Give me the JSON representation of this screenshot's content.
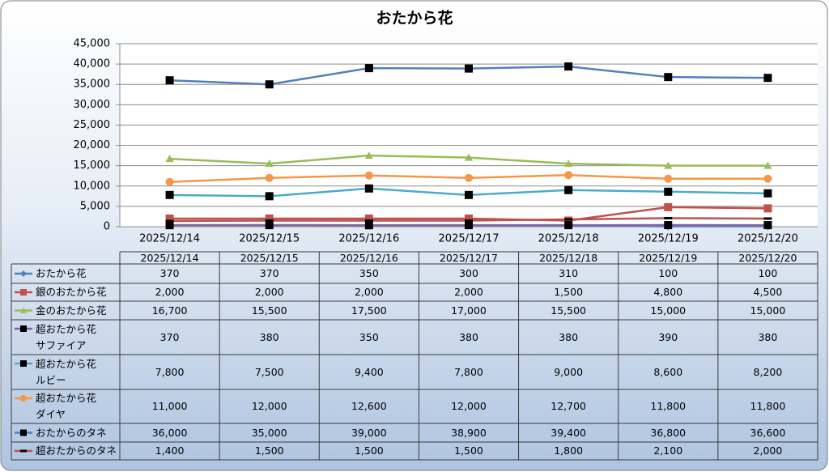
{
  "chart_data": {
    "type": "line",
    "title": "おたから花",
    "categories": [
      "2025/12/14",
      "2025/12/15",
      "2025/12/16",
      "2025/12/17",
      "2025/12/18",
      "2025/12/19",
      "2025/12/20"
    ],
    "ylim": [
      0,
      45000
    ],
    "yticks": [
      0,
      {
        "value": 5000,
        "label": "5,000"
      },
      {
        "value": 10000,
        "label": "10,000"
      },
      {
        "value": 15000,
        "label": "15,000"
      },
      {
        "value": 20000,
        "label": "20,000"
      },
      {
        "value": 25000,
        "label": "25,000"
      },
      {
        "value": 30000,
        "label": "30,000"
      },
      {
        "value": 35000,
        "label": "35,000"
      },
      {
        "value": 40000,
        "label": "40,000"
      },
      {
        "value": 45000,
        "label": "45,000"
      }
    ],
    "grid": true,
    "legend": "table",
    "series": [
      {
        "name": "おたから花",
        "color": "#4f81bd",
        "marker": "diamond",
        "marker_color": "#4f81bd",
        "values": [
          370,
          370,
          350,
          300,
          310,
          100,
          100
        ],
        "value_labels": [
          "370",
          "370",
          "350",
          "300",
          "310",
          "100",
          "100"
        ]
      },
      {
        "name": "銀のおたから花",
        "color": "#c0504d",
        "marker": "square",
        "marker_color": "#c0504d",
        "values": [
          2000,
          2000,
          2000,
          2000,
          1500,
          4800,
          4500
        ],
        "value_labels": [
          "2,000",
          "2,000",
          "2,000",
          "2,000",
          "1,500",
          "4,800",
          "4,500"
        ]
      },
      {
        "name": "金のおたから花",
        "color": "#9bbb59",
        "marker": "triangle",
        "marker_color": "#9bbb59",
        "values": [
          16700,
          15500,
          17500,
          17000,
          15500,
          15000,
          15000
        ],
        "value_labels": [
          "16,700",
          "15,500",
          "17,500",
          "17,000",
          "15,500",
          "15,000",
          "15,000"
        ]
      },
      {
        "name": "超おたから花\nサファイア",
        "color": "#8064a2",
        "marker": "square",
        "marker_color": "#000000",
        "values": [
          370,
          380,
          350,
          380,
          380,
          390,
          380
        ],
        "value_labels": [
          "370",
          "380",
          "350",
          "380",
          "380",
          "390",
          "380"
        ]
      },
      {
        "name": "超おたから花\nルビー",
        "color": "#4bacc6",
        "marker": "square",
        "marker_color": "#000000",
        "values": [
          7800,
          7500,
          9400,
          7800,
          9000,
          8600,
          8200
        ],
        "value_labels": [
          "7,800",
          "7,500",
          "9,400",
          "7,800",
          "9,000",
          "8,600",
          "8,200"
        ]
      },
      {
        "name": "超おたから花\nダイヤ",
        "color": "#f79646",
        "marker": "circle",
        "marker_color": "#f79646",
        "values": [
          11000,
          12000,
          12600,
          12000,
          12700,
          11800,
          11800
        ],
        "value_labels": [
          "11,000",
          "12,000",
          "12,600",
          "12,000",
          "12,700",
          "11,800",
          "11,800"
        ]
      },
      {
        "name": "おたからのタネ",
        "color": "#4f81bd",
        "marker": "square",
        "marker_color": "#000000",
        "values": [
          36000,
          35000,
          39000,
          38900,
          39400,
          36800,
          36600
        ],
        "value_labels": [
          "36,000",
          "35,000",
          "39,000",
          "38,900",
          "39,400",
          "36,800",
          "36,600"
        ]
      },
      {
        "name": "超おたからのタネ",
        "color": "#c0504d",
        "marker": "dash",
        "marker_color": "#000000",
        "values": [
          1400,
          1500,
          1500,
          1500,
          1800,
          2100,
          2000
        ],
        "value_labels": [
          "1,400",
          "1,500",
          "1,500",
          "1,500",
          "1,800",
          "2,100",
          "2,000"
        ]
      }
    ]
  }
}
